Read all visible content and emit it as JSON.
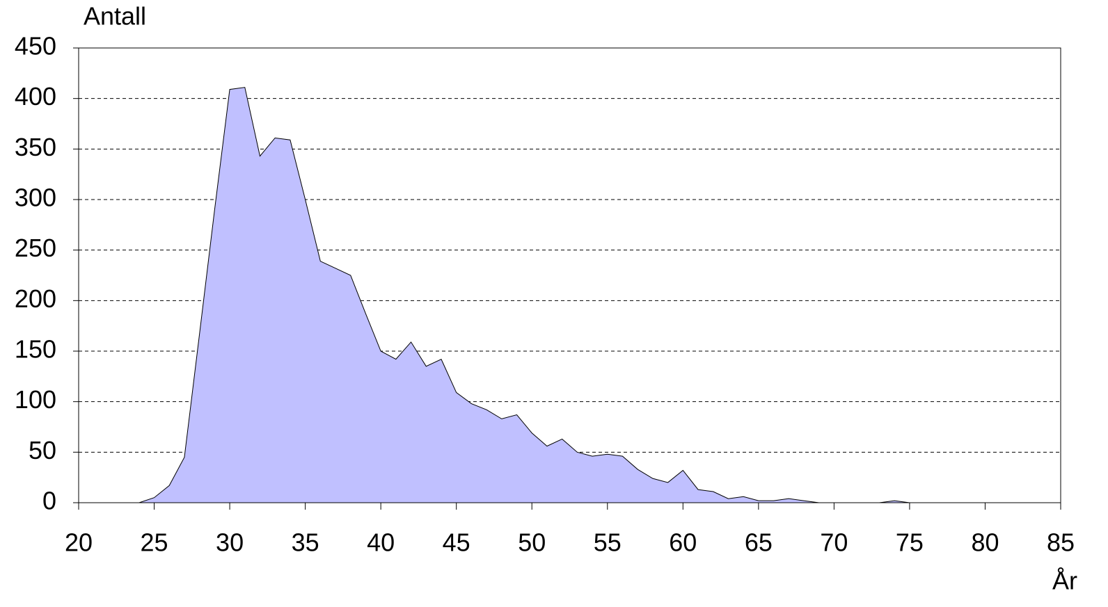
{
  "chart_data": {
    "type": "area",
    "ylabel": "Antall",
    "xlabel": "År",
    "x": [
      20,
      21,
      22,
      23,
      24,
      25,
      26,
      27,
      28,
      29,
      30,
      31,
      32,
      33,
      34,
      35,
      36,
      37,
      38,
      39,
      40,
      41,
      42,
      43,
      44,
      45,
      46,
      47,
      48,
      49,
      50,
      51,
      52,
      53,
      54,
      55,
      56,
      57,
      58,
      59,
      60,
      61,
      62,
      63,
      64,
      65,
      66,
      67,
      68,
      69,
      70,
      71,
      72,
      73,
      74,
      75,
      76,
      77,
      78,
      79,
      80,
      81,
      82,
      83,
      84,
      85
    ],
    "values": [
      0,
      0,
      0,
      0,
      0,
      5,
      17,
      45,
      167,
      290,
      409,
      411,
      343,
      361,
      359,
      300,
      239,
      232,
      225,
      187,
      150,
      142,
      159,
      135,
      142,
      109,
      98,
      92,
      83,
      87,
      69,
      56,
      63,
      50,
      46,
      48,
      46,
      33,
      24,
      20,
      32,
      13,
      11,
      4,
      6,
      2,
      2,
      4,
      2,
      0,
      0,
      0,
      0,
      0,
      2,
      0,
      0,
      0,
      0,
      0,
      0,
      0,
      0,
      0,
      0,
      0
    ],
    "color": "#c0c0ff",
    "xlim": [
      20,
      85
    ],
    "xticks": [
      20,
      25,
      30,
      35,
      40,
      45,
      50,
      55,
      60,
      65,
      70,
      75,
      80,
      85
    ],
    "ylim": [
      0,
      450
    ],
    "yticks": [
      0,
      50,
      100,
      150,
      200,
      250,
      300,
      350,
      400,
      450
    ],
    "grid": true
  }
}
